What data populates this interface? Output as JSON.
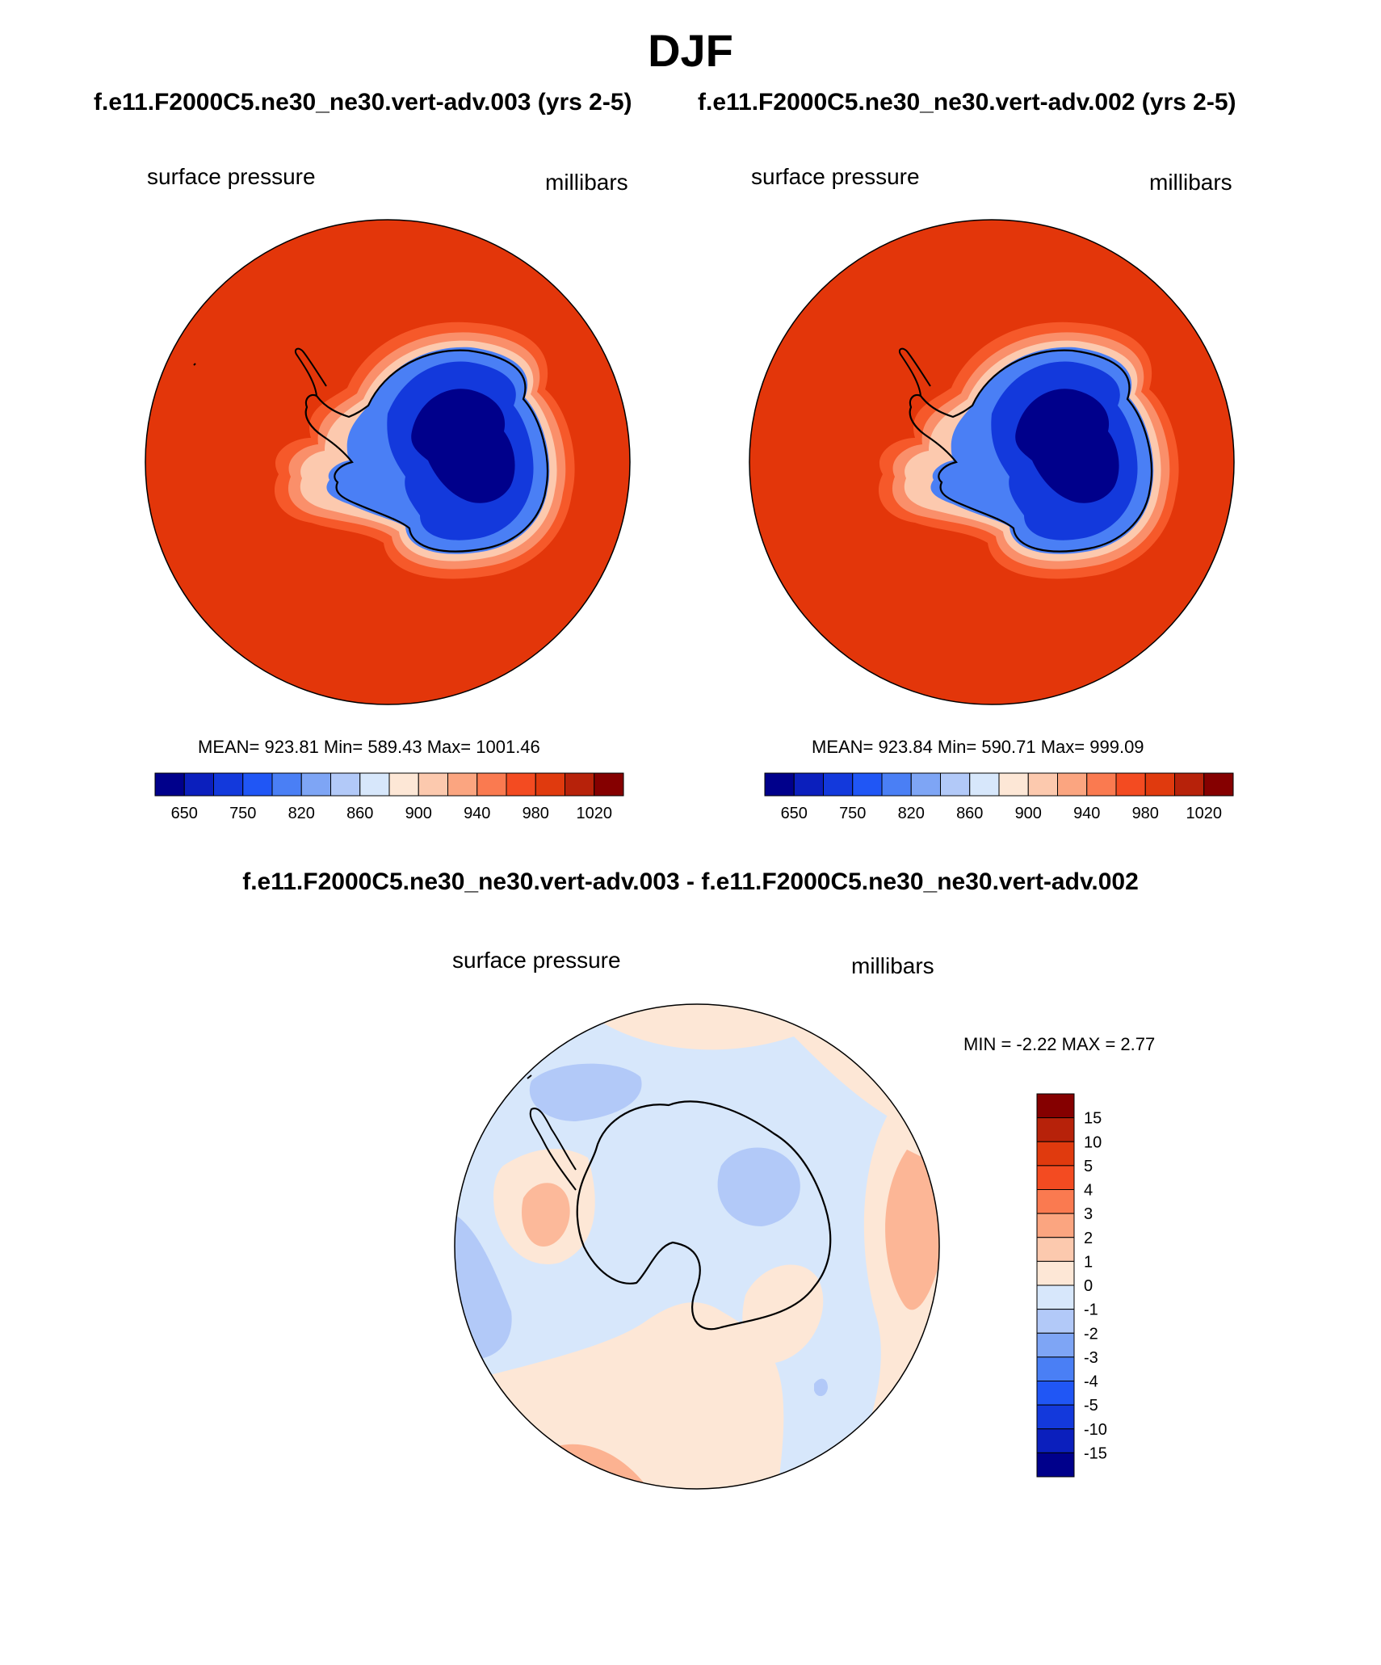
{
  "figure": {
    "season": "DJF",
    "case_a_title": "f.e11.F2000C5.ne30_ne30.vert-adv.003 (yrs 2-5)",
    "case_b_title": "f.e11.F2000C5.ne30_ne30.vert-adv.002 (yrs 2-5)",
    "diff_title": "f.e11.F2000C5.ne30_ne30.vert-adv.003 - f.e11.F2000C5.ne30_ne30.vert-adv.002"
  },
  "chart_data": [
    {
      "type": "heatmap",
      "projection": "south polar stereographic",
      "variable": "surface pressure",
      "units": "millibars",
      "stats_text": "MEAN= 923.81  Min= 589.43  Max= 1001.46",
      "mean": 923.81,
      "min": 589.43,
      "max": 1001.46,
      "colorbar": {
        "orientation": "horizontal",
        "tick_labels": [
          "650",
          "750",
          "820",
          "860",
          "900",
          "940",
          "980",
          "1020"
        ],
        "colors": [
          "#00008b",
          "#0b1fbd",
          "#1339dc",
          "#2056f5",
          "#4a7ff5",
          "#7ea5f5",
          "#b2c9f8",
          "#d7e7fb",
          "#fde7d6",
          "#fcc9ae",
          "#fba580",
          "#fa7a50",
          "#f34b21",
          "#e03a0e",
          "#b7220a",
          "#850000"
        ]
      }
    },
    {
      "type": "heatmap",
      "projection": "south polar stereographic",
      "variable": "surface pressure",
      "units": "millibars",
      "stats_text": "MEAN= 923.84  Min= 590.71  Max= 999.09",
      "mean": 923.84,
      "min": 590.71,
      "max": 999.09,
      "colorbar": {
        "orientation": "horizontal",
        "tick_labels": [
          "650",
          "750",
          "820",
          "860",
          "900",
          "940",
          "980",
          "1020"
        ],
        "colors": [
          "#00008b",
          "#0b1fbd",
          "#1339dc",
          "#2056f5",
          "#4a7ff5",
          "#7ea5f5",
          "#b2c9f8",
          "#d7e7fb",
          "#fde7d6",
          "#fcc9ae",
          "#fba580",
          "#fa7a50",
          "#f34b21",
          "#e03a0e",
          "#b7220a",
          "#850000"
        ]
      }
    },
    {
      "type": "heatmap",
      "projection": "south polar stereographic",
      "variable": "surface pressure",
      "units": "millibars",
      "stats_text": "MIN =  -2.22 MAX =   2.77",
      "min": -2.22,
      "max": 2.77,
      "colorbar": {
        "orientation": "vertical",
        "tick_labels": [
          "15",
          "10",
          "5",
          "4",
          "3",
          "2",
          "1",
          "0",
          "-1",
          "-2",
          "-3",
          "-4",
          "-5",
          "-10",
          "-15"
        ],
        "colors": [
          "#850000",
          "#b7220a",
          "#e03a0e",
          "#f34b21",
          "#fa7a50",
          "#fba580",
          "#fcc9ae",
          "#fde7d6",
          "#d7e7fb",
          "#b2c9f8",
          "#7ea5f5",
          "#4a7ff5",
          "#2056f5",
          "#1339dc",
          "#0b1fbd",
          "#00008b"
        ]
      }
    }
  ],
  "palette": {
    "ocean": "#e3360a",
    "coast_ring_1": "#f6592a",
    "coast_ring_2": "#fa8f6a",
    "coast_ring_3": "#fcc9ae",
    "ice_lo": "#00008b",
    "ice_mid": "#1339dc",
    "ice_hi": "#4a7ff5",
    "diff_base": "#d7e7fb",
    "diff_pos": "#fde7d6",
    "diff_pos2": "#fba580",
    "diff_neg": "#b2c9f8"
  }
}
